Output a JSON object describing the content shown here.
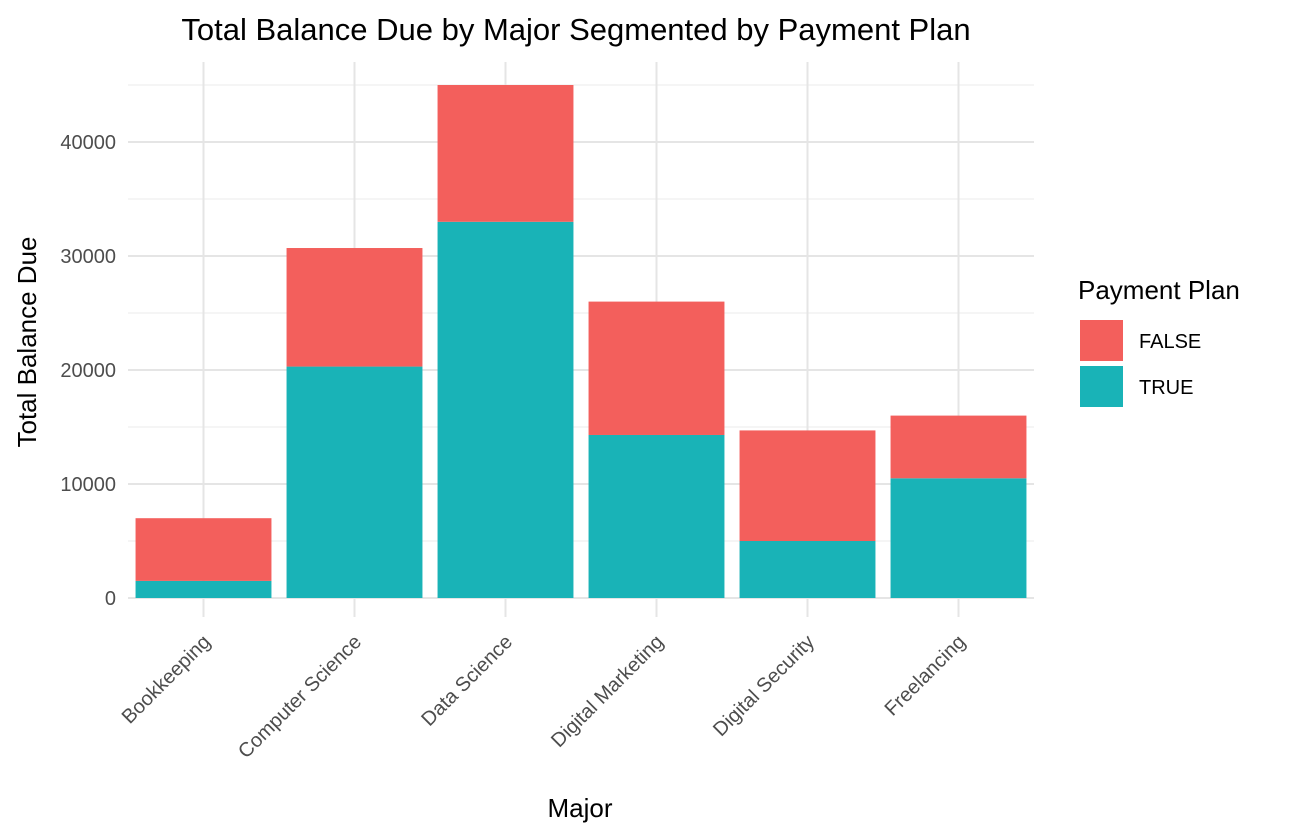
{
  "chart_data": {
    "type": "bar",
    "stacked": true,
    "title": "Total Balance Due by Major Segmented by Payment Plan",
    "xlabel": "Major",
    "ylabel": "Total Balance Due",
    "categories": [
      "Bookkeeping",
      "Computer Science",
      "Data Science",
      "Digital Marketing",
      "Digital Security",
      "Freelancing"
    ],
    "series": [
      {
        "name": "TRUE",
        "color": "#19b3b7",
        "values": [
          1500,
          20300,
          33000,
          14300,
          5000,
          10500
        ]
      },
      {
        "name": "FALSE",
        "color": "#f35f5c",
        "values": [
          5500,
          10400,
          12000,
          11700,
          9700,
          5500
        ]
      }
    ],
    "ylim": [
      0,
      47000
    ],
    "yticks": [
      0,
      10000,
      20000,
      30000,
      40000
    ],
    "ytick_labels": [
      "0",
      "10000",
      "20000",
      "30000",
      "40000"
    ],
    "grid": true,
    "legend": {
      "title": "Payment Plan",
      "placement": "right",
      "entries": [
        {
          "label": "FALSE",
          "color": "#f35f5c"
        },
        {
          "label": "TRUE",
          "color": "#19b3b7"
        }
      ]
    }
  }
}
